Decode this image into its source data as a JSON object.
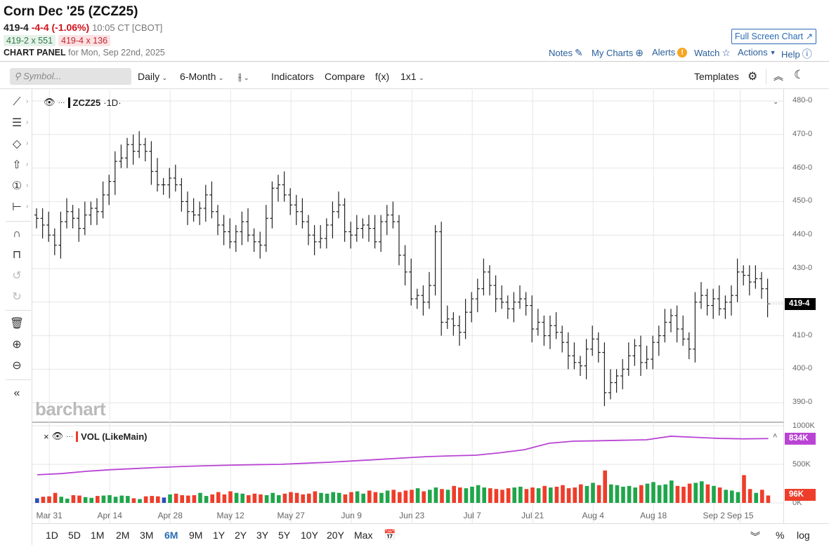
{
  "header": {
    "title": "Corn Dec '25 (ZCZ25)",
    "last": "419-4",
    "change": "-4-4 (-1.06%)",
    "time": "10:05 CT [CBOT]",
    "bid": "419-2 x 551",
    "ask": "419-4 x 136",
    "panel_label": "CHART PANEL",
    "panel_date": "for Mon, Sep 22nd, 2025",
    "full_screen": "Full Screen Chart ↗",
    "links": {
      "notes": "Notes",
      "my_charts": "My Charts",
      "alerts": "Alerts",
      "watch": "Watch",
      "actions": "Actions",
      "help": "Help"
    }
  },
  "toolbar": {
    "search_placeholder": "Symbol...",
    "interval": "Daily",
    "period": "6-Month",
    "indicators": "Indicators",
    "compare": "Compare",
    "fx": "f(x)",
    "layout": "1x1",
    "templates": "Templates"
  },
  "legend": {
    "symbol": "ZCZ25",
    "interval": "·1D·",
    "volume": "VOL (LikeMain)"
  },
  "brand": "barchart",
  "price_axis": {
    "labels": [
      "480-0",
      "470-0",
      "460-0",
      "450-0",
      "440-0",
      "430-0",
      "420-0",
      "410-0",
      "400-0",
      "390-0"
    ],
    "last_tag": "419-4"
  },
  "volume_axis": {
    "labels": [
      "1000K",
      "500K",
      "0K"
    ],
    "line_tag": "834K",
    "vol_tag": "96K"
  },
  "colors": {
    "up": "#1fa64a",
    "down": "#ee3d2a",
    "unchanged": "#2b4fb7",
    "line": "#b944d4",
    "price_tag": "#000000",
    "accent": "#2a6ab5"
  },
  "chart_data": {
    "type": "ohlc",
    "ylim": [
      388,
      482
    ],
    "close": [
      445,
      443,
      440,
      437,
      444,
      447,
      445,
      442,
      446,
      448,
      447,
      452,
      456,
      462,
      463,
      467,
      465,
      467,
      465,
      459,
      455,
      455,
      457,
      455,
      450,
      447,
      446,
      448,
      452,
      447,
      443,
      441,
      438,
      441,
      444,
      440,
      438,
      437,
      445,
      454,
      455,
      452,
      449,
      447,
      444,
      440,
      438,
      439,
      443,
      447,
      449,
      441,
      440,
      442,
      443,
      442,
      438,
      444,
      446,
      444,
      434,
      429,
      421,
      422,
      420,
      425,
      441,
      414,
      415,
      413,
      411,
      417,
      421,
      424,
      429,
      425,
      421,
      420,
      418,
      420,
      421,
      419,
      412,
      414,
      410,
      413,
      411,
      408,
      404,
      402,
      401,
      406,
      409,
      405,
      393,
      396,
      398,
      400,
      404,
      407,
      402,
      403,
      408,
      410,
      414,
      416,
      412,
      409,
      406,
      420,
      422,
      419,
      421,
      418,
      420,
      422,
      429,
      428,
      426,
      427,
      424,
      419.5
    ],
    "volume_k": [
      60,
      80,
      85,
      130,
      80,
      55,
      100,
      95,
      75,
      65,
      90,
      95,
      100,
      80,
      95,
      90,
      60,
      50,
      85,
      90,
      85,
      70,
      110,
      120,
      100,
      95,
      100,
      130,
      90,
      110,
      140,
      110,
      150,
      130,
      120,
      100,
      120,
      110,
      100,
      130,
      100,
      120,
      140,
      130,
      110,
      120,
      150,
      130,
      120,
      140,
      130,
      110,
      140,
      150,
      120,
      160,
      140,
      130,
      160,
      170,
      140,
      160,
      170,
      190,
      150,
      170,
      200,
      180,
      170,
      220,
      200,
      190,
      210,
      230,
      200,
      190,
      180,
      170,
      190,
      200,
      210,
      180,
      200,
      190,
      220,
      200,
      210,
      230,
      190,
      200,
      240,
      220,
      260,
      230,
      420,
      240,
      230,
      210,
      220,
      200,
      230,
      250,
      270,
      230,
      240,
      290,
      220,
      210,
      250,
      260,
      280,
      240,
      220,
      200,
      170,
      160,
      140,
      360,
      180,
      130,
      170,
      96
    ],
    "open_interest_k": [
      365,
      380,
      409,
      430,
      445,
      460,
      473,
      482,
      490,
      496,
      500,
      514,
      527,
      545,
      563,
      582,
      600,
      610,
      618,
      650,
      690,
      773,
      800,
      805,
      812,
      818,
      864,
      850,
      836,
      830,
      834
    ],
    "x_ticks": [
      {
        "label": "Mar 31",
        "bar": 2
      },
      {
        "label": "Apr 14",
        "bar": 12
      },
      {
        "label": "Apr 28",
        "bar": 22
      },
      {
        "label": "May 12",
        "bar": 32
      },
      {
        "label": "May 27",
        "bar": 42
      },
      {
        "label": "Jun 9",
        "bar": 52
      },
      {
        "label": "Jun 23",
        "bar": 62
      },
      {
        "label": "Jul 7",
        "bar": 72
      },
      {
        "label": "Jul 21",
        "bar": 82
      },
      {
        "label": "Aug 4",
        "bar": 92
      },
      {
        "label": "Aug 18",
        "bar": 102
      },
      {
        "label": "Sep 2",
        "bar": 112
      },
      {
        "label": "Sep 15",
        "bar": 121
      }
    ]
  },
  "ranges": [
    "1D",
    "5D",
    "1M",
    "2M",
    "3M",
    "6M",
    "9M",
    "1Y",
    "2Y",
    "3Y",
    "5Y",
    "10Y",
    "20Y",
    "Max"
  ],
  "active_range": "6M",
  "scale_options": {
    "percent": "%",
    "log": "log"
  }
}
